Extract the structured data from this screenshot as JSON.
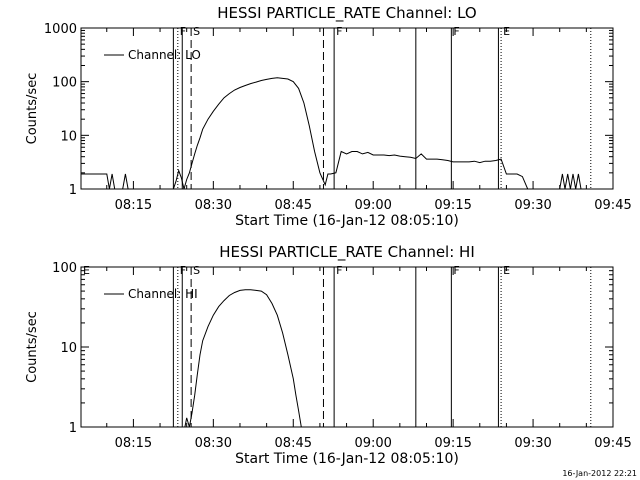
{
  "figure": {
    "timestamp": "16-Jan-2012 22:21"
  },
  "chart_data": [
    {
      "type": "line",
      "title": "HESSI PARTICLE_RATE Channel: LO",
      "xlabel": "Start Time (16-Jan-12 08:05:10)",
      "ylabel": "Counts/sec",
      "yscale": "log",
      "ylim": [
        1,
        1000
      ],
      "yticks": [
        {
          "value": 1,
          "label": "1"
        },
        {
          "value": 10,
          "label": "10"
        },
        {
          "value": 100,
          "label": "100"
        },
        {
          "value": 1000,
          "label": "1000"
        }
      ],
      "xlim": [
        "08:05:10",
        "09:45:00"
      ],
      "xticks": [
        "08:15",
        "08:30",
        "08:45",
        "09:00",
        "09:15",
        "09:30",
        "09:45"
      ],
      "legend": {
        "entries": [
          "Channel: LO"
        ],
        "position": "top-left"
      },
      "series": [
        {
          "name": "Channel: LO",
          "x": [
            "08:05:10",
            "08:06",
            "08:07",
            "08:08",
            "08:09",
            "08:10",
            "08:10:30",
            "08:11",
            "08:11:30",
            "08:12",
            "08:13",
            "08:13:30",
            "08:14",
            "08:15",
            "08:16",
            "08:17",
            "08:18",
            "08:19",
            "08:20",
            "08:21",
            "08:22",
            "08:22:30",
            "08:23",
            "08:23:30",
            "08:24",
            "08:24:30",
            "08:25",
            "08:25:30",
            "08:26",
            "08:26:30",
            "08:27",
            "08:27:30",
            "08:28",
            "08:29",
            "08:30",
            "08:31",
            "08:32",
            "08:33",
            "08:34",
            "08:35",
            "08:36",
            "08:37",
            "08:38",
            "08:39",
            "08:40",
            "08:41",
            "08:42",
            "08:43",
            "08:44",
            "08:45",
            "08:46",
            "08:47",
            "08:48",
            "08:49",
            "08:50",
            "08:51",
            "08:51:30",
            "08:52",
            "08:53",
            "08:54",
            "08:55",
            "08:56",
            "08:57",
            "08:58",
            "08:59",
            "09:00",
            "09:01",
            "09:02",
            "09:03",
            "09:04",
            "09:05",
            "09:06",
            "09:07",
            "09:08",
            "09:09",
            "09:10",
            "09:11",
            "09:12",
            "09:13",
            "09:14",
            "09:15",
            "09:16",
            "09:17",
            "09:18",
            "09:19",
            "09:20",
            "09:21",
            "09:22",
            "09:23",
            "09:24",
            "09:25",
            "09:26",
            "09:27",
            "09:28",
            "09:29",
            "09:30",
            "09:31",
            "09:31:30",
            "09:32",
            "09:32:30",
            "09:33",
            "09:34",
            "09:34:30",
            "09:35",
            "09:35:30",
            "09:36",
            "09:36:30",
            "09:37",
            "09:37:30",
            "09:38",
            "09:38:30",
            "09:39",
            "09:39:30",
            "09:40",
            "09:41",
            "09:42",
            "09:43",
            "09:44",
            "09:45"
          ],
          "y": [
            1.9,
            1.9,
            1.9,
            1.9,
            1.9,
            1.9,
            1,
            1.9,
            1,
            1,
            1,
            1.9,
            1,
            1,
            1,
            1,
            1,
            1,
            1,
            1,
            1,
            1,
            1.4,
            2.2,
            1.6,
            1,
            1.5,
            2,
            3,
            4.5,
            6.5,
            9,
            13,
            20,
            28,
            38,
            50,
            60,
            70,
            78,
            85,
            92,
            98,
            105,
            110,
            115,
            118,
            115,
            112,
            100,
            75,
            40,
            15,
            5,
            2,
            1.2,
            1.9,
            1.9,
            2,
            5,
            4.5,
            5,
            5,
            4.5,
            4.8,
            4.3,
            4.3,
            4.3,
            4.2,
            4.3,
            4.1,
            4,
            3.9,
            3.7,
            4.5,
            3.6,
            3.6,
            3.6,
            3.5,
            3.4,
            3.2,
            3.2,
            3.2,
            3.2,
            3.3,
            3.1,
            3.3,
            3.3,
            3.4,
            3.6,
            1.9,
            1.9,
            1.9,
            1.7,
            1,
            1,
            1,
            1,
            1,
            1,
            1,
            1,
            1,
            1,
            1.9,
            1,
            1.9,
            1,
            1.9,
            1,
            1.9,
            1,
            1,
            1,
            1,
            1,
            1,
            1,
            1
          ]
        }
      ],
      "markers": [
        {
          "time": "08:22:30",
          "style": "solid",
          "label": ""
        },
        {
          "time": "08:23:20",
          "style": "dotted",
          "label": "F"
        },
        {
          "time": "08:24:10",
          "style": "solid",
          "label": ""
        },
        {
          "time": "08:25:50",
          "style": "dashed",
          "label": "S"
        },
        {
          "time": "08:50:40",
          "style": "dashed",
          "label": ""
        },
        {
          "time": "08:52:40",
          "style": "solid",
          "label": "F"
        },
        {
          "time": "09:08:00",
          "style": "solid",
          "label": ""
        },
        {
          "time": "09:14:40",
          "style": "solid",
          "label": "F"
        },
        {
          "time": "09:23:30",
          "style": "solid",
          "label": ""
        },
        {
          "time": "09:24:00",
          "style": "dotted",
          "label": "E"
        },
        {
          "time": "09:40:50",
          "style": "dotted",
          "label": ""
        }
      ]
    },
    {
      "type": "line",
      "title": "HESSI PARTICLE_RATE Channel: HI",
      "xlabel": "Start Time (16-Jan-12 08:05:10)",
      "ylabel": "Counts/sec",
      "yscale": "log",
      "ylim": [
        1,
        100
      ],
      "yticks": [
        {
          "value": 1,
          "label": "1"
        },
        {
          "value": 10,
          "label": "10"
        },
        {
          "value": 100,
          "label": "100"
        }
      ],
      "xlim": [
        "08:05:10",
        "09:45:00"
      ],
      "xticks": [
        "08:15",
        "08:30",
        "08:45",
        "09:00",
        "09:15",
        "09:30",
        "09:45"
      ],
      "legend": {
        "entries": [
          "Channel: HI"
        ],
        "position": "top-left"
      },
      "series": [
        {
          "name": "Channel: HI",
          "x": [
            "08:24:40",
            "08:25",
            "08:25:30",
            "08:26",
            "08:26:30",
            "08:27",
            "08:27:30",
            "08:28",
            "08:29",
            "08:30",
            "08:31",
            "08:32",
            "08:33",
            "08:34",
            "08:35",
            "08:36",
            "08:37",
            "08:38",
            "08:39",
            "08:40",
            "08:41",
            "08:42",
            "08:43",
            "08:44",
            "08:45",
            "08:45:30",
            "08:46",
            "08:46:30"
          ],
          "y": [
            1,
            1.3,
            1,
            1.5,
            2.5,
            4.5,
            8,
            12,
            18,
            25,
            32,
            38,
            44,
            48,
            51,
            52,
            52,
            51,
            50,
            45,
            35,
            25,
            15,
            8,
            4,
            2.5,
            1.6,
            1
          ]
        }
      ],
      "markers": [
        {
          "time": "08:22:30",
          "style": "solid",
          "label": ""
        },
        {
          "time": "08:23:20",
          "style": "dotted",
          "label": "F"
        },
        {
          "time": "08:24:10",
          "style": "solid",
          "label": ""
        },
        {
          "time": "08:25:50",
          "style": "dashed",
          "label": "S"
        },
        {
          "time": "08:50:40",
          "style": "dashed",
          "label": ""
        },
        {
          "time": "08:52:40",
          "style": "solid",
          "label": "F"
        },
        {
          "time": "09:08:00",
          "style": "solid",
          "label": ""
        },
        {
          "time": "09:14:40",
          "style": "solid",
          "label": "F"
        },
        {
          "time": "09:23:30",
          "style": "solid",
          "label": ""
        },
        {
          "time": "09:24:00",
          "style": "dotted",
          "label": "E"
        },
        {
          "time": "09:40:50",
          "style": "dotted",
          "label": ""
        }
      ],
      "corner_label": "E"
    }
  ]
}
